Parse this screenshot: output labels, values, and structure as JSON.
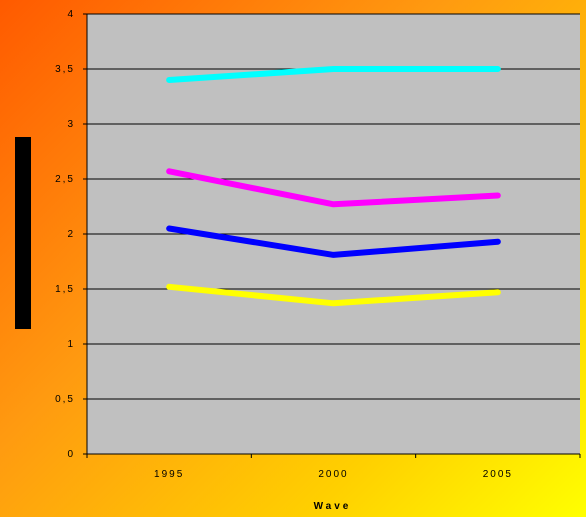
{
  "chart_data": {
    "type": "line",
    "categories": [
      "1995",
      "2000",
      "2005"
    ],
    "xlabel": "Wave",
    "ylabel": "",
    "ylim": [
      0,
      4
    ],
    "yticks": [
      0,
      0.5,
      1,
      1.5,
      2,
      2.5,
      3,
      3.5,
      4
    ],
    "ytick_labels": [
      "0",
      "0,5",
      "1",
      "1,5",
      "2",
      "2,5",
      "3",
      "3,5",
      "4"
    ],
    "grid": "horizontal",
    "series": [
      {
        "color": "#00ffff",
        "values": [
          3.4,
          3.5,
          3.5
        ]
      },
      {
        "color": "#ff00ff",
        "values": [
          2.57,
          2.27,
          2.35
        ]
      },
      {
        "color": "#0000ff",
        "values": [
          2.05,
          1.81,
          1.93
        ]
      },
      {
        "color": "#ffff00",
        "values": [
          1.52,
          1.37,
          1.47
        ]
      }
    ],
    "colors": {
      "plot_background": "#c0c0c0",
      "grid": "#000000"
    }
  }
}
